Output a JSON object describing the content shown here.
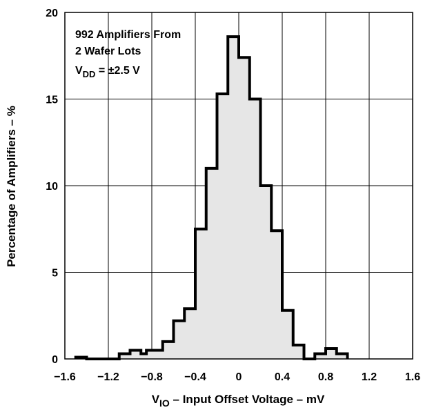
{
  "chart_data": {
    "type": "bar",
    "subtype": "histogram",
    "xlabel_main": "V",
    "xlabel_sub": "IO",
    "xlabel_rest": " – Input Offset Voltage – mV",
    "ylabel": "Percentage of Amplifiers – %",
    "xlim": [
      -1.6,
      1.6
    ],
    "ylim": [
      0,
      20
    ],
    "grid": true,
    "x_ticks": [
      -1.6,
      -1.2,
      -0.8,
      -0.4,
      0,
      0.4,
      0.8,
      1.2,
      1.6
    ],
    "x_tick_labels": [
      "−1.6",
      "−1.2",
      "−0.8",
      "−0.4",
      "0",
      "0.4",
      "0.8",
      "1.2",
      "1.6"
    ],
    "y_ticks": [
      0,
      5,
      10,
      15,
      20
    ],
    "y_tick_labels": [
      "0",
      "5",
      "10",
      "15",
      "20"
    ],
    "annotation": {
      "line1": "992 Amplifiers From",
      "line2": "2 Wafer Lots",
      "line3_main": "V",
      "line3_sub": "DD",
      "line3_rest": " = ±2.5 V"
    },
    "fill_color": "#e6e6e6",
    "bins": [
      {
        "x0": -1.5,
        "x1": -1.4,
        "value": 0.1
      },
      {
        "x0": -1.4,
        "x1": -1.1,
        "value": 0
      },
      {
        "x0": -1.1,
        "x1": -1.0,
        "value": 0.3
      },
      {
        "x0": -1.0,
        "x1": -0.9,
        "value": 0.5
      },
      {
        "x0": -0.9,
        "x1": -0.85,
        "value": 0.3
      },
      {
        "x0": -0.85,
        "x1": -0.7,
        "value": 0.5
      },
      {
        "x0": -0.7,
        "x1": -0.6,
        "value": 1.0
      },
      {
        "x0": -0.6,
        "x1": -0.5,
        "value": 2.2
      },
      {
        "x0": -0.5,
        "x1": -0.4,
        "value": 2.9
      },
      {
        "x0": -0.4,
        "x1": -0.3,
        "value": 7.5
      },
      {
        "x0": -0.3,
        "x1": -0.2,
        "value": 11.0
      },
      {
        "x0": -0.2,
        "x1": -0.1,
        "value": 15.3
      },
      {
        "x0": -0.1,
        "x1": 0.0,
        "value": 18.6
      },
      {
        "x0": 0.0,
        "x1": 0.1,
        "value": 17.4
      },
      {
        "x0": 0.1,
        "x1": 0.2,
        "value": 15.0
      },
      {
        "x0": 0.2,
        "x1": 0.3,
        "value": 10.0
      },
      {
        "x0": 0.3,
        "x1": 0.4,
        "value": 7.4
      },
      {
        "x0": 0.4,
        "x1": 0.5,
        "value": 2.8
      },
      {
        "x0": 0.5,
        "x1": 0.6,
        "value": 0.8
      },
      {
        "x0": 0.6,
        "x1": 0.7,
        "value": 0
      },
      {
        "x0": 0.7,
        "x1": 0.8,
        "value": 0.3
      },
      {
        "x0": 0.8,
        "x1": 0.9,
        "value": 0.6
      },
      {
        "x0": 0.9,
        "x1": 1.0,
        "value": 0.3
      }
    ]
  }
}
